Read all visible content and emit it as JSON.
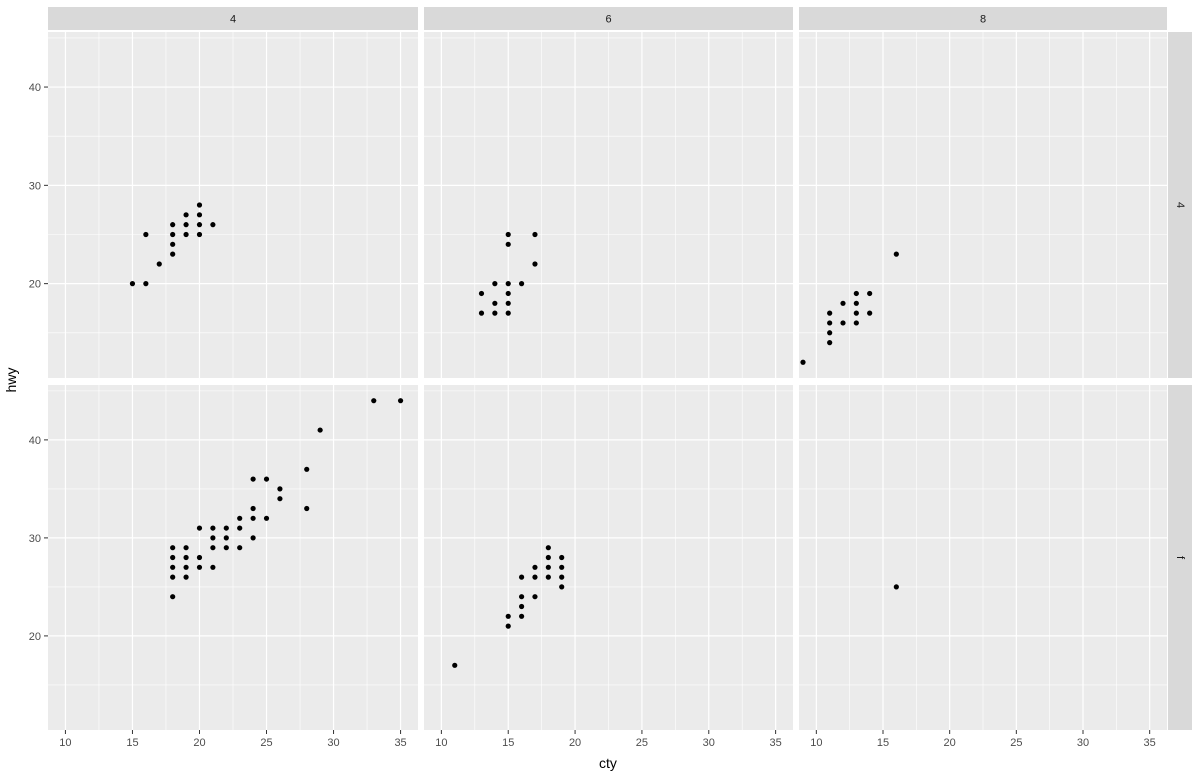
{
  "chart_data": {
    "type": "scatter",
    "xlabel": "cty",
    "ylabel": "hwy",
    "xlim": [
      8.7,
      36.3
    ],
    "ylim": [
      10.4,
      45.6
    ],
    "x_ticks": [
      10,
      15,
      20,
      25,
      30,
      35
    ],
    "y_ticks": [
      20,
      30,
      40
    ],
    "grid": true,
    "facet_cols": [
      "4",
      "6",
      "8"
    ],
    "facet_rows": [
      "4",
      "f"
    ],
    "colors": {
      "panel_bg": "#ebebeb",
      "strip_bg": "#d9d9d9",
      "grid": "#ffffff",
      "point": "#000000"
    },
    "panels": [
      {
        "col": "4",
        "row": "4",
        "points": [
          [
            15,
            20
          ],
          [
            16,
            20
          ],
          [
            16,
            25
          ],
          [
            17,
            22
          ],
          [
            18,
            23
          ],
          [
            18,
            24
          ],
          [
            18,
            25
          ],
          [
            18,
            26
          ],
          [
            19,
            25
          ],
          [
            19,
            26
          ],
          [
            19,
            27
          ],
          [
            20,
            25
          ],
          [
            20,
            26
          ],
          [
            20,
            27
          ],
          [
            20,
            28
          ],
          [
            21,
            26
          ]
        ]
      },
      {
        "col": "6",
        "row": "4",
        "points": [
          [
            13,
            17
          ],
          [
            13,
            19
          ],
          [
            14,
            17
          ],
          [
            14,
            18
          ],
          [
            14,
            20
          ],
          [
            15,
            17
          ],
          [
            15,
            18
          ],
          [
            15,
            19
          ],
          [
            15,
            20
          ],
          [
            15,
            24
          ],
          [
            15,
            25
          ],
          [
            16,
            20
          ],
          [
            17,
            22
          ],
          [
            17,
            25
          ]
        ]
      },
      {
        "col": "8",
        "row": "4",
        "points": [
          [
            9,
            12
          ],
          [
            11,
            14
          ],
          [
            11,
            15
          ],
          [
            11,
            16
          ],
          [
            11,
            17
          ],
          [
            12,
            16
          ],
          [
            12,
            18
          ],
          [
            13,
            16
          ],
          [
            13,
            17
          ],
          [
            13,
            18
          ],
          [
            13,
            19
          ],
          [
            14,
            17
          ],
          [
            14,
            19
          ],
          [
            16,
            23
          ]
        ]
      },
      {
        "col": "4",
        "row": "f",
        "points": [
          [
            18,
            24
          ],
          [
            18,
            26
          ],
          [
            18,
            27
          ],
          [
            18,
            28
          ],
          [
            18,
            29
          ],
          [
            19,
            26
          ],
          [
            19,
            27
          ],
          [
            19,
            28
          ],
          [
            19,
            29
          ],
          [
            20,
            27
          ],
          [
            20,
            28
          ],
          [
            20,
            31
          ],
          [
            21,
            27
          ],
          [
            21,
            29
          ],
          [
            21,
            30
          ],
          [
            21,
            31
          ],
          [
            22,
            29
          ],
          [
            22,
            30
          ],
          [
            22,
            31
          ],
          [
            23,
            29
          ],
          [
            23,
            31
          ],
          [
            23,
            32
          ],
          [
            24,
            30
          ],
          [
            24,
            32
          ],
          [
            24,
            33
          ],
          [
            24,
            36
          ],
          [
            25,
            32
          ],
          [
            25,
            36
          ],
          [
            26,
            34
          ],
          [
            26,
            35
          ],
          [
            28,
            33
          ],
          [
            28,
            37
          ],
          [
            29,
            41
          ],
          [
            33,
            44
          ],
          [
            35,
            44
          ]
        ]
      },
      {
        "col": "6",
        "row": "f",
        "points": [
          [
            11,
            17
          ],
          [
            15,
            21
          ],
          [
            15,
            22
          ],
          [
            16,
            22
          ],
          [
            16,
            23
          ],
          [
            16,
            24
          ],
          [
            16,
            26
          ],
          [
            17,
            24
          ],
          [
            17,
            26
          ],
          [
            17,
            27
          ],
          [
            18,
            26
          ],
          [
            18,
            27
          ],
          [
            18,
            28
          ],
          [
            18,
            29
          ],
          [
            19,
            25
          ],
          [
            19,
            26
          ],
          [
            19,
            27
          ],
          [
            19,
            28
          ]
        ]
      },
      {
        "col": "8",
        "row": "f",
        "points": [
          [
            16,
            25
          ]
        ]
      }
    ]
  }
}
